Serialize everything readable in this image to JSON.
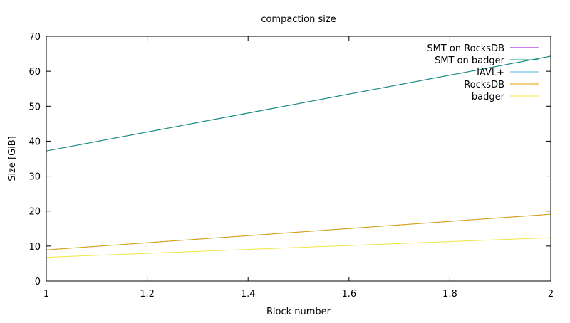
{
  "chart_data": {
    "type": "line",
    "title": "compaction size",
    "xlabel": "Block number",
    "ylabel": "Size [GiB]",
    "xlim": [
      1,
      2
    ],
    "ylim": [
      0,
      70
    ],
    "x_ticks": [
      1,
      1.2,
      1.4,
      1.6,
      1.8,
      2
    ],
    "x_tick_labels": [
      "1",
      "1.2",
      "1.4",
      "1.6",
      "1.8",
      "2"
    ],
    "y_ticks": [
      0,
      10,
      20,
      30,
      40,
      50,
      60,
      70
    ],
    "y_tick_labels": [
      "0",
      "10",
      "20",
      "30",
      "40",
      "50",
      "60",
      "70"
    ],
    "grid": false,
    "legend_position": "top-right",
    "series": [
      {
        "name": "SMT on RocksDB",
        "color": "#9400d3",
        "x": [
          1,
          2
        ],
        "y": [
          37.2,
          64.3
        ]
      },
      {
        "name": "SMT on badger",
        "color": "#009e73",
        "x": [
          1,
          2
        ],
        "y": [
          37.2,
          64.3
        ]
      },
      {
        "name": "IAVL+",
        "color": "#56b4e9",
        "x": [
          1,
          2
        ],
        "y": [
          8.9,
          19.1
        ]
      },
      {
        "name": "RocksDB",
        "color": "#e69f00",
        "x": [
          1,
          2
        ],
        "y": [
          8.9,
          19.1
        ]
      },
      {
        "name": "badger",
        "color": "#f0e442",
        "x": [
          1,
          2
        ],
        "y": [
          6.8,
          12.4
        ]
      }
    ]
  }
}
